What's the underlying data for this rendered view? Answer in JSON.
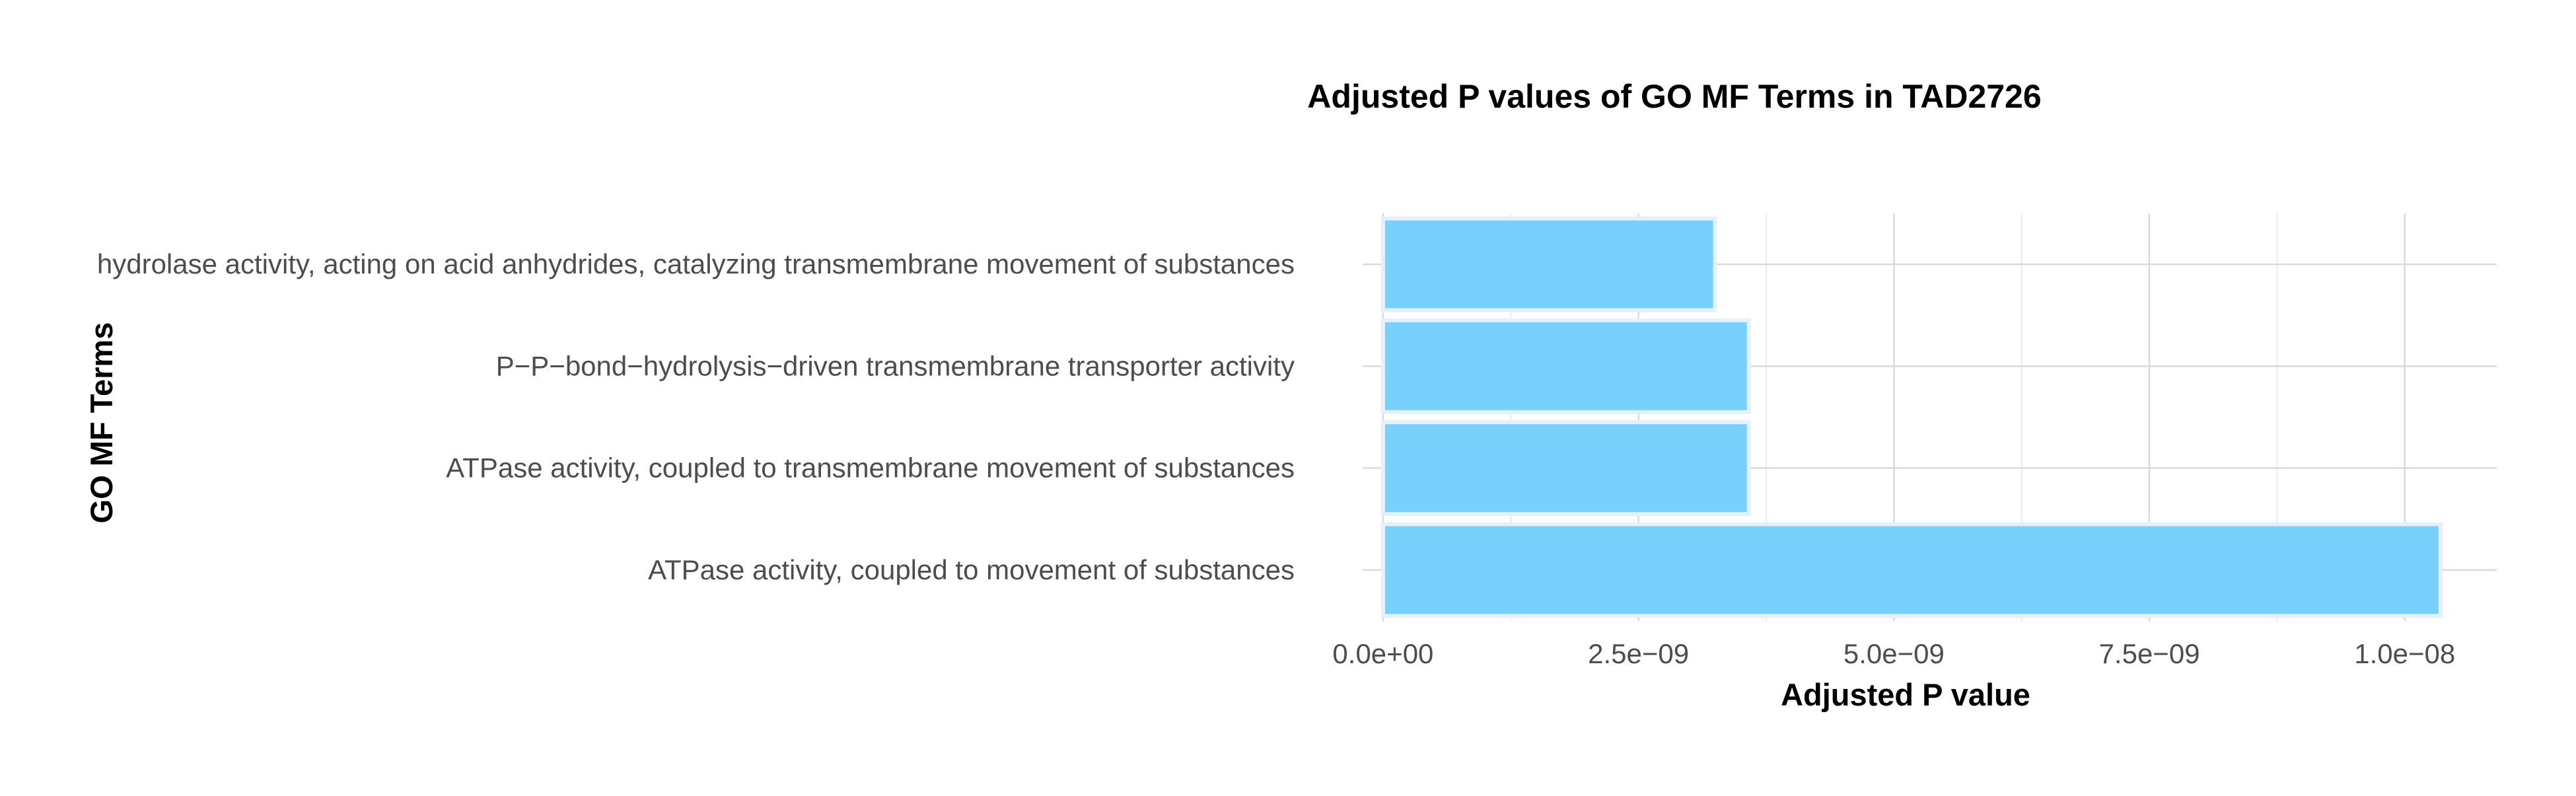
{
  "chart_data": {
    "type": "bar",
    "orientation": "horizontal",
    "title": "Adjusted P values of GO MF Terms in TAD2726",
    "xlabel": "Adjusted P value",
    "ylabel": "GO MF Terms",
    "categories": [
      "hydrolase activity, acting on acid anhydrides, catalyzing transmembrane movement of substances",
      "P−P−bond−hydrolysis−driven transmembrane transporter activity",
      "ATPase activity, coupled to transmembrane movement of substances",
      "ATPase activity, coupled to movement of substances"
    ],
    "values": [
      3.25e-09,
      3.58e-09,
      3.58e-09,
      1.035e-08
    ],
    "xlim": [
      -2e-10,
      1.09e-08
    ],
    "x_ticks": [
      0,
      2.5e-09,
      5e-09,
      7.5e-09,
      1e-08
    ],
    "x_tick_labels": [
      "0.0e+00",
      "2.5e−09",
      "5.0e−09",
      "7.5e−09",
      "1.0e−08"
    ],
    "grid": true,
    "legend": "none",
    "colors": {
      "bar_fill": "#75CFFC",
      "bar_stroke": "#E6F0FA",
      "grid_major": "#DADADA",
      "grid_minor": "#EBEBEB",
      "background": "#FFFFFF"
    }
  }
}
